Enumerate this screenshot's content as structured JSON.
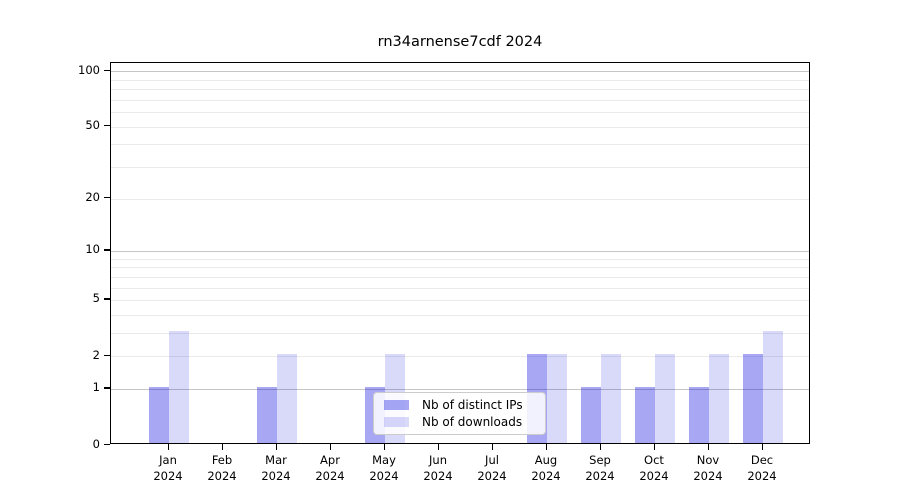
{
  "title": "rn34arnense7cdf 2024",
  "chart_data": {
    "type": "bar",
    "title": "rn34arnense7cdf 2024",
    "categories": [
      "Jan 2024",
      "Feb 2024",
      "Mar 2024",
      "Apr 2024",
      "May 2024",
      "Jun 2024",
      "Jul 2024",
      "Aug 2024",
      "Sep 2024",
      "Oct 2024",
      "Nov 2024",
      "Dec 2024"
    ],
    "series": [
      {
        "name": "Nb of distinct IPs",
        "values": [
          1,
          0,
          1,
          0,
          1,
          0,
          0,
          2,
          1,
          1,
          1,
          2
        ],
        "color": "#0000e058",
        "effective_color": "#a8a8f7"
      },
      {
        "name": "Nb of downloads",
        "values": [
          3,
          0,
          2,
          0,
          2,
          0,
          0,
          2,
          2,
          2,
          2,
          3
        ],
        "color": "#0000e026",
        "effective_color": "#d9d9fb"
      }
    ],
    "xlabel": "",
    "ylabel": "",
    "y_axis": {
      "scale": "log1p",
      "ticks": [
        100,
        50,
        20,
        10,
        5,
        2,
        1,
        0
      ],
      "major_gridlines": [
        1,
        10,
        100
      ],
      "minor_gridlines": [
        2,
        3,
        4,
        5,
        6,
        7,
        8,
        9,
        20,
        30,
        40,
        50,
        60,
        70,
        80,
        90
      ],
      "ylim": [
        0,
        111
      ]
    },
    "grid": true,
    "legend_position": "lower center",
    "colors": {
      "major_grid": "#c6c6c6",
      "minor_grid": "#eaeaea",
      "axis": "#000000"
    }
  }
}
